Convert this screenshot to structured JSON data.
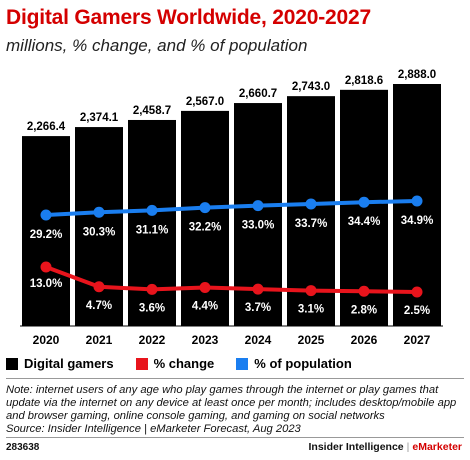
{
  "title": "Digital Gamers Worldwide, 2020-2027",
  "subtitle": "millions, % change, and % of population",
  "chart_data": {
    "type": "bar",
    "categories": [
      "2020",
      "2021",
      "2022",
      "2023",
      "2024",
      "2025",
      "2026",
      "2027"
    ],
    "series": [
      {
        "name": "Digital gamers",
        "type": "bar",
        "color": "#000000",
        "values": [
          2266.4,
          2374.1,
          2458.7,
          2567.0,
          2660.7,
          2743.0,
          2818.6,
          2888.0
        ],
        "labels": [
          "2,266.4",
          "2,374.1",
          "2,458.7",
          "2,567.0",
          "2,660.7",
          "2,743.0",
          "2,818.6",
          "2,888.0"
        ]
      },
      {
        "name": "% change",
        "type": "line",
        "color": "#e8141c",
        "values": [
          13.0,
          4.7,
          3.6,
          4.4,
          3.7,
          3.1,
          2.8,
          2.5
        ],
        "labels": [
          "13.0%",
          "4.7%",
          "3.6%",
          "4.4%",
          "3.7%",
          "3.1%",
          "2.8%",
          "2.5%"
        ]
      },
      {
        "name": "% of population",
        "type": "line",
        "color": "#1a7ef0",
        "values": [
          29.2,
          30.3,
          31.1,
          32.2,
          33.0,
          33.7,
          34.4,
          34.9
        ],
        "labels": [
          "29.2%",
          "30.3%",
          "31.1%",
          "32.2%",
          "33.0%",
          "33.7%",
          "34.4%",
          "34.9%"
        ]
      }
    ],
    "legend_position": "bottom",
    "grid": false
  },
  "legend": [
    {
      "label": "Digital gamers",
      "color": "#000000"
    },
    {
      "label": "% change",
      "color": "#e8141c"
    },
    {
      "label": "% of population",
      "color": "#1a7ef0"
    }
  ],
  "note": "Note: internet users of any age who play games through the internet or play games that update via the internet on any device at least once per month; includes desktop/mobile app and browser gaming, online console gaming, and gaming on social networks",
  "source": "Source: Insider Intelligence | eMarketer Forecast, Aug 2023",
  "footer": {
    "id": "283638",
    "brand1": "Insider Intelligence",
    "separator": "|",
    "brand2": "eMarketer"
  }
}
